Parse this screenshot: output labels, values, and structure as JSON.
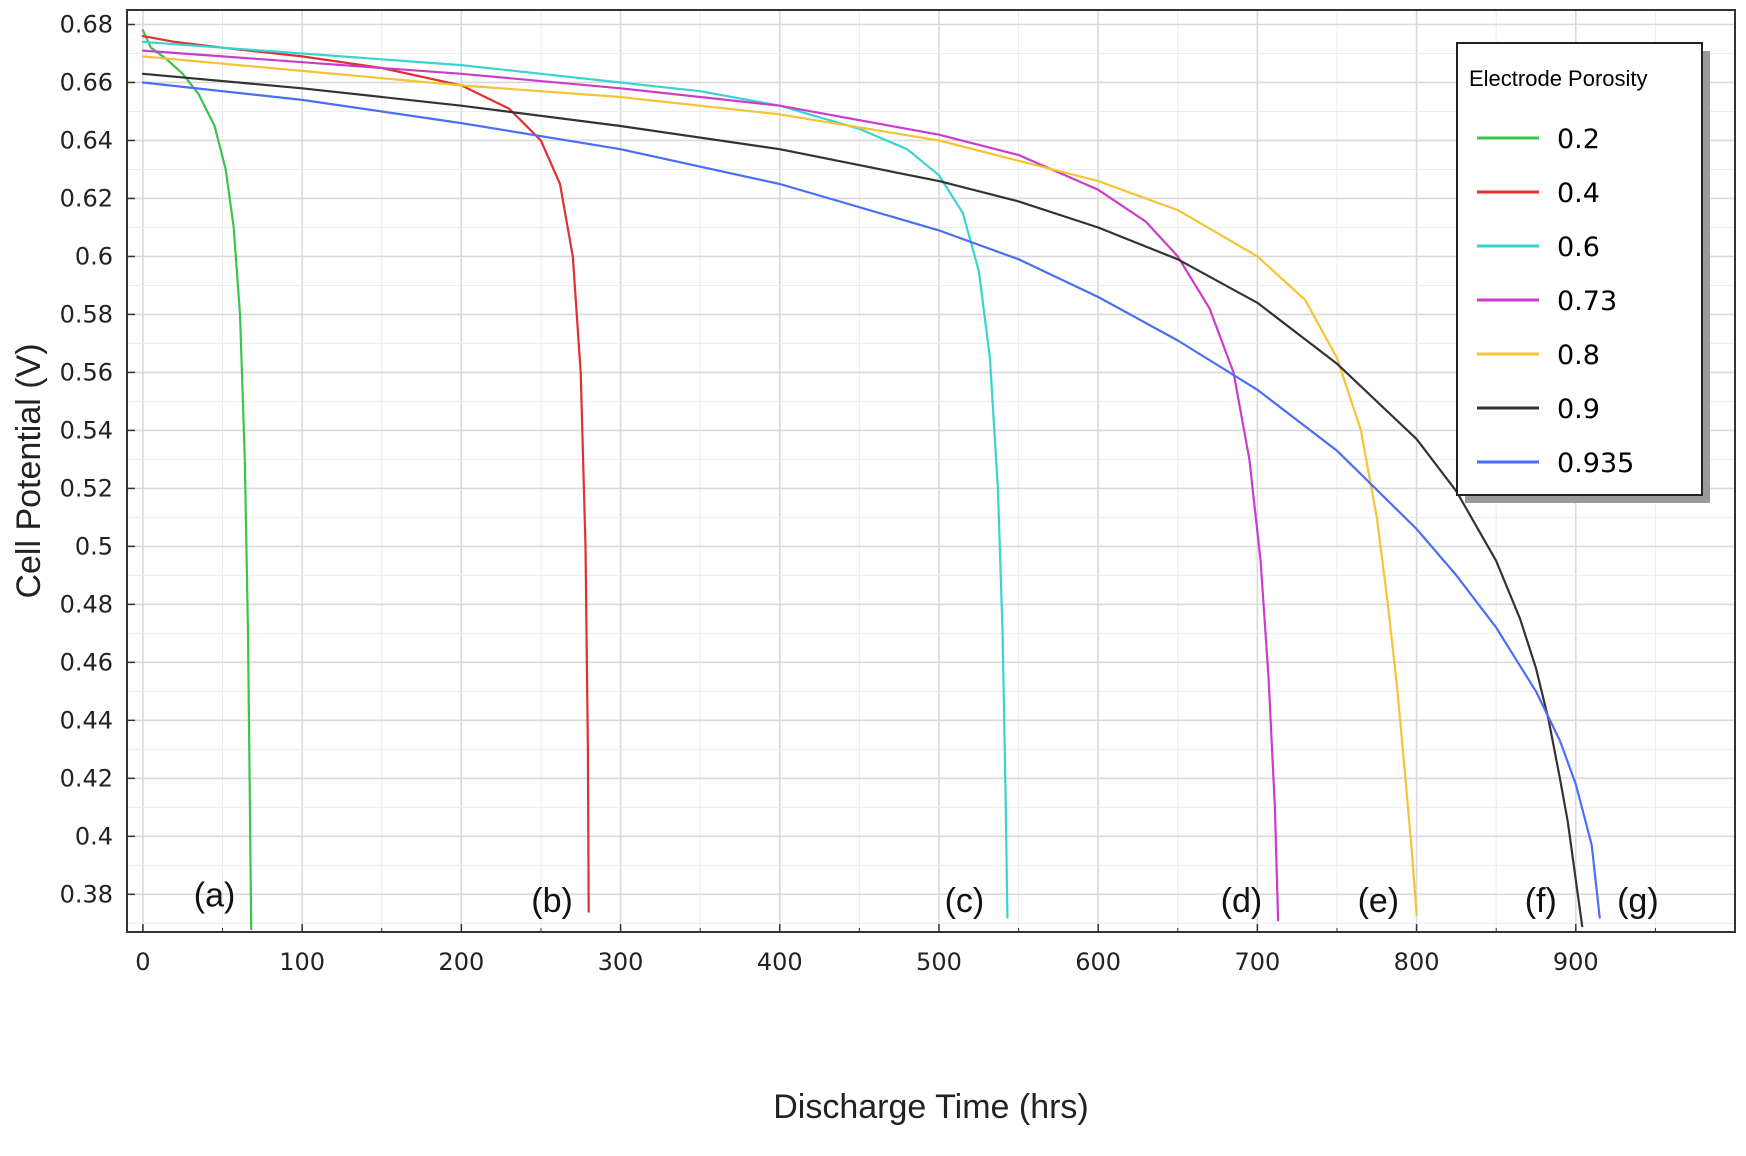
{
  "chart_data": {
    "type": "line",
    "title": "",
    "xlabel": "Discharge Time (hrs)",
    "ylabel": "Cell Potential (V)",
    "xlim": [
      -10,
      1000
    ],
    "ylim": [
      0.367,
      0.685
    ],
    "grid": true,
    "x_ticks": [
      0,
      100,
      200,
      300,
      400,
      500,
      600,
      700,
      800,
      900
    ],
    "x_tick_labels": [
      "0",
      "100",
      "200",
      "300",
      "400",
      "500",
      "600",
      "700",
      "800",
      "900"
    ],
    "y_ticks": [
      0.38,
      0.4,
      0.42,
      0.44,
      0.46,
      0.48,
      0.5,
      0.52,
      0.54,
      0.56,
      0.58,
      0.6,
      0.62,
      0.64,
      0.66,
      0.68
    ],
    "y_tick_labels": [
      "0.38",
      "0.4",
      "0.42",
      "0.44",
      "0.46",
      "0.48",
      "0.5",
      "0.52",
      "0.54",
      "0.56",
      "0.58",
      "0.6",
      "0.62",
      "0.64",
      "0.66",
      "0.68"
    ],
    "legend": {
      "title": "Electrode Porosity",
      "position": "top-right"
    },
    "series": [
      {
        "name": "0.2",
        "color": "#3cc34a",
        "x": [
          0,
          5,
          15,
          25,
          35,
          45,
          52,
          57,
          61,
          64,
          66,
          67,
          68
        ],
        "y": [
          0.678,
          0.672,
          0.668,
          0.663,
          0.656,
          0.645,
          0.63,
          0.61,
          0.58,
          0.53,
          0.47,
          0.42,
          0.368
        ]
      },
      {
        "name": "0.4",
        "color": "#e03030",
        "x": [
          0,
          20,
          50,
          100,
          150,
          200,
          230,
          250,
          262,
          270,
          275,
          278,
          279.5,
          280
        ],
        "y": [
          0.676,
          0.674,
          0.672,
          0.669,
          0.665,
          0.659,
          0.651,
          0.64,
          0.625,
          0.6,
          0.56,
          0.5,
          0.43,
          0.374
        ]
      },
      {
        "name": "0.6",
        "color": "#38d4cf",
        "x": [
          0,
          50,
          100,
          200,
          300,
          350,
          400,
          450,
          480,
          500,
          515,
          525,
          532,
          537,
          540,
          542,
          543
        ],
        "y": [
          0.674,
          0.672,
          0.67,
          0.666,
          0.66,
          0.657,
          0.652,
          0.644,
          0.637,
          0.628,
          0.615,
          0.595,
          0.565,
          0.52,
          0.47,
          0.41,
          0.372
        ]
      },
      {
        "name": "0.73",
        "color": "#cc3ccc",
        "x": [
          0,
          100,
          200,
          300,
          400,
          500,
          550,
          600,
          630,
          650,
          670,
          685,
          695,
          702,
          707,
          711,
          713
        ],
        "y": [
          0.671,
          0.667,
          0.663,
          0.658,
          0.652,
          0.642,
          0.635,
          0.623,
          0.612,
          0.6,
          0.582,
          0.56,
          0.53,
          0.495,
          0.455,
          0.41,
          0.371
        ]
      },
      {
        "name": "0.8",
        "color": "#f7c234",
        "x": [
          0,
          100,
          200,
          300,
          400,
          500,
          600,
          650,
          700,
          730,
          750,
          765,
          775,
          782,
          788,
          793,
          797,
          800
        ],
        "y": [
          0.669,
          0.664,
          0.659,
          0.655,
          0.649,
          0.64,
          0.626,
          0.616,
          0.6,
          0.585,
          0.565,
          0.54,
          0.51,
          0.48,
          0.45,
          0.42,
          0.395,
          0.373
        ]
      },
      {
        "name": "0.9",
        "color": "#333333",
        "x": [
          0,
          100,
          200,
          300,
          400,
          500,
          550,
          600,
          650,
          700,
          750,
          800,
          825,
          850,
          865,
          875,
          883,
          890,
          895,
          900,
          904
        ],
        "y": [
          0.663,
          0.658,
          0.652,
          0.645,
          0.637,
          0.626,
          0.619,
          0.61,
          0.599,
          0.584,
          0.563,
          0.537,
          0.519,
          0.495,
          0.475,
          0.458,
          0.44,
          0.42,
          0.405,
          0.385,
          0.369
        ]
      },
      {
        "name": "0.935",
        "color": "#4a6ef5",
        "x": [
          0,
          100,
          200,
          300,
          400,
          500,
          550,
          600,
          650,
          700,
          750,
          800,
          825,
          850,
          875,
          890,
          900,
          910,
          915
        ],
        "y": [
          0.66,
          0.654,
          0.646,
          0.637,
          0.625,
          0.609,
          0.599,
          0.586,
          0.571,
          0.554,
          0.533,
          0.506,
          0.49,
          0.472,
          0.45,
          0.433,
          0.418,
          0.397,
          0.372
        ]
      }
    ],
    "annotations": [
      {
        "text": "(a)",
        "x": 45,
        "y": 0.38
      },
      {
        "text": "(b)",
        "x": 257,
        "y": 0.378
      },
      {
        "text": "(c)",
        "x": 516,
        "y": 0.378
      },
      {
        "text": "(d)",
        "x": 690,
        "y": 0.378
      },
      {
        "text": "(e)",
        "x": 776,
        "y": 0.378
      },
      {
        "text": "(f)",
        "x": 878,
        "y": 0.378
      },
      {
        "text": "(g)",
        "x": 939,
        "y": 0.378
      }
    ]
  }
}
